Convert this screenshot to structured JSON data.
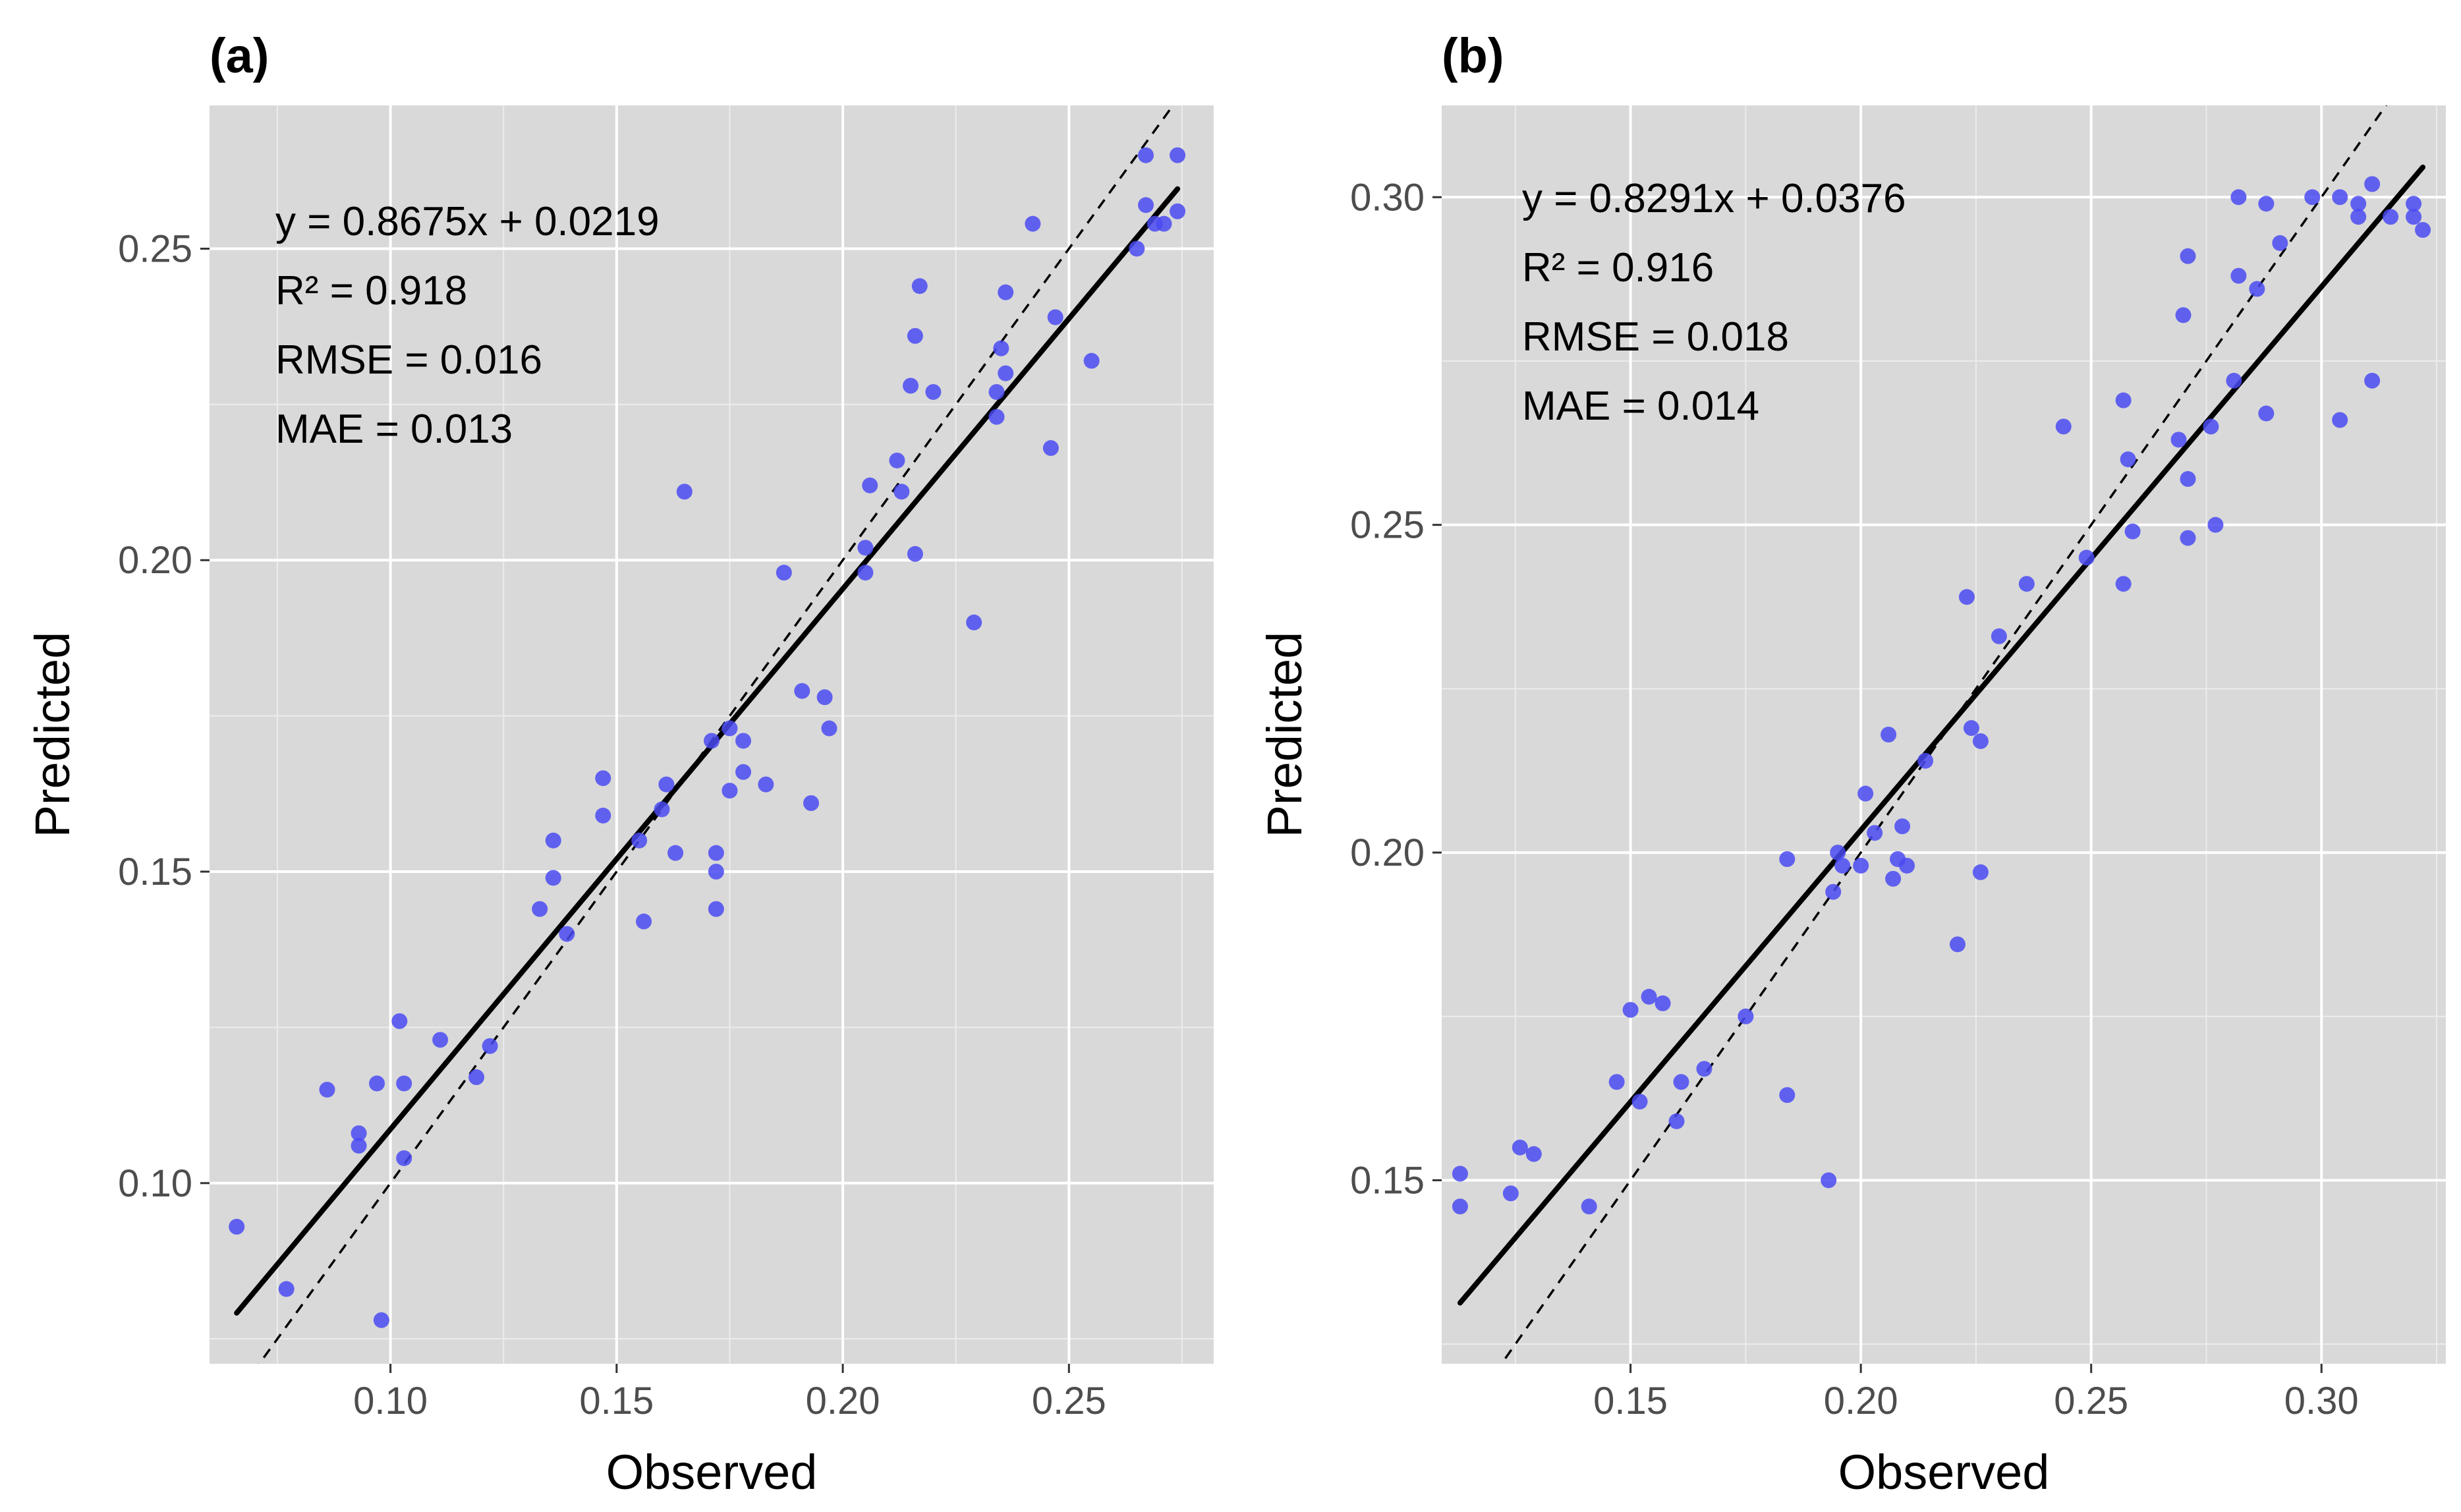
{
  "chart_data": [
    {
      "type": "scatter",
      "panel_label": "(a)",
      "xlabel": "Observed",
      "ylabel": "Predicted",
      "xlim": [
        0.06,
        0.282
      ],
      "ylim": [
        0.071,
        0.273
      ],
      "x_ticks": [
        0.1,
        0.15,
        0.2,
        0.25
      ],
      "y_ticks": [
        0.1,
        0.15,
        0.2,
        0.25
      ],
      "x_tick_labels": [
        "0.10",
        "0.15",
        "0.20",
        "0.25"
      ],
      "y_tick_labels": [
        "0.10",
        "0.15",
        "0.20",
        "0.25"
      ],
      "grid": true,
      "panel_background": "#d9d9d9",
      "point_color": "#4a4af2",
      "fit_line": {
        "slope": 0.8675,
        "intercept": 0.0219,
        "color": "#000000",
        "style": "solid"
      },
      "reference_line": {
        "slope": 1,
        "intercept": 0,
        "color": "#000000",
        "style": "dashed"
      },
      "annotations": [
        "y = 0.8675x + 0.0219",
        "R² = 0.918",
        "RMSE = 0.016",
        "MAE = 0.013"
      ],
      "points": [
        [
          0.066,
          0.093
        ],
        [
          0.077,
          0.083
        ],
        [
          0.086,
          0.115
        ],
        [
          0.093,
          0.106
        ],
        [
          0.093,
          0.108
        ],
        [
          0.097,
          0.116
        ],
        [
          0.098,
          0.078
        ],
        [
          0.102,
          0.126
        ],
        [
          0.103,
          0.104
        ],
        [
          0.103,
          0.116
        ],
        [
          0.111,
          0.123
        ],
        [
          0.119,
          0.117
        ],
        [
          0.122,
          0.122
        ],
        [
          0.133,
          0.144
        ],
        [
          0.136,
          0.149
        ],
        [
          0.136,
          0.155
        ],
        [
          0.139,
          0.14
        ],
        [
          0.147,
          0.165
        ],
        [
          0.147,
          0.159
        ],
        [
          0.155,
          0.155
        ],
        [
          0.156,
          0.142
        ],
        [
          0.16,
          0.16
        ],
        [
          0.161,
          0.164
        ],
        [
          0.163,
          0.153
        ],
        [
          0.165,
          0.211
        ],
        [
          0.171,
          0.171
        ],
        [
          0.172,
          0.153
        ],
        [
          0.172,
          0.15
        ],
        [
          0.172,
          0.144
        ],
        [
          0.175,
          0.163
        ],
        [
          0.175,
          0.173
        ],
        [
          0.178,
          0.166
        ],
        [
          0.178,
          0.171
        ],
        [
          0.183,
          0.164
        ],
        [
          0.187,
          0.198
        ],
        [
          0.191,
          0.179
        ],
        [
          0.193,
          0.161
        ],
        [
          0.196,
          0.178
        ],
        [
          0.197,
          0.173
        ],
        [
          0.205,
          0.198
        ],
        [
          0.205,
          0.202
        ],
        [
          0.206,
          0.212
        ],
        [
          0.212,
          0.216
        ],
        [
          0.213,
          0.211
        ],
        [
          0.215,
          0.228
        ],
        [
          0.216,
          0.236
        ],
        [
          0.216,
          0.201
        ],
        [
          0.217,
          0.244
        ],
        [
          0.22,
          0.227
        ],
        [
          0.229,
          0.19
        ],
        [
          0.234,
          0.223
        ],
        [
          0.234,
          0.227
        ],
        [
          0.235,
          0.234
        ],
        [
          0.236,
          0.243
        ],
        [
          0.236,
          0.23
        ],
        [
          0.242,
          0.254
        ],
        [
          0.246,
          0.218
        ],
        [
          0.247,
          0.239
        ],
        [
          0.255,
          0.232
        ],
        [
          0.265,
          0.25
        ],
        [
          0.267,
          0.265
        ],
        [
          0.267,
          0.257
        ],
        [
          0.269,
          0.254
        ],
        [
          0.271,
          0.254
        ],
        [
          0.274,
          0.265
        ],
        [
          0.274,
          0.256
        ]
      ]
    },
    {
      "type": "scatter",
      "panel_label": "(b)",
      "xlabel": "Observed",
      "ylabel": "Predicted",
      "xlim": [
        0.109,
        0.327
      ],
      "ylim": [
        0.122,
        0.314
      ],
      "x_ticks": [
        0.15,
        0.2,
        0.25,
        0.3
      ],
      "y_ticks": [
        0.15,
        0.2,
        0.25,
        0.3
      ],
      "x_tick_labels": [
        "0.15",
        "0.20",
        "0.25",
        "0.30"
      ],
      "y_tick_labels": [
        "0.15",
        "0.20",
        "0.25",
        "0.30"
      ],
      "grid": true,
      "panel_background": "#d9d9d9",
      "point_color": "#4a4af2",
      "fit_line": {
        "slope": 0.8291,
        "intercept": 0.0376,
        "color": "#000000",
        "style": "solid"
      },
      "reference_line": {
        "slope": 1,
        "intercept": 0,
        "color": "#000000",
        "style": "dashed"
      },
      "annotations": [
        "y = 0.8291x + 0.0376",
        "R² = 0.916",
        "RMSE = 0.018",
        "MAE = 0.014"
      ],
      "points": [
        [
          0.113,
          0.151
        ],
        [
          0.113,
          0.146
        ],
        [
          0.124,
          0.148
        ],
        [
          0.126,
          0.155
        ],
        [
          0.129,
          0.154
        ],
        [
          0.141,
          0.146
        ],
        [
          0.147,
          0.165
        ],
        [
          0.15,
          0.176
        ],
        [
          0.152,
          0.162
        ],
        [
          0.154,
          0.178
        ],
        [
          0.157,
          0.177
        ],
        [
          0.16,
          0.159
        ],
        [
          0.161,
          0.165
        ],
        [
          0.166,
          0.167
        ],
        [
          0.175,
          0.175
        ],
        [
          0.184,
          0.199
        ],
        [
          0.184,
          0.163
        ],
        [
          0.193,
          0.15
        ],
        [
          0.194,
          0.194
        ],
        [
          0.195,
          0.2
        ],
        [
          0.196,
          0.198
        ],
        [
          0.2,
          0.198
        ],
        [
          0.201,
          0.209
        ],
        [
          0.203,
          0.203
        ],
        [
          0.206,
          0.218
        ],
        [
          0.207,
          0.196
        ],
        [
          0.208,
          0.199
        ],
        [
          0.209,
          0.204
        ],
        [
          0.21,
          0.198
        ],
        [
          0.214,
          0.214
        ],
        [
          0.221,
          0.186
        ],
        [
          0.223,
          0.239
        ],
        [
          0.224,
          0.219
        ],
        [
          0.226,
          0.217
        ],
        [
          0.226,
          0.197
        ],
        [
          0.23,
          0.233
        ],
        [
          0.236,
          0.241
        ],
        [
          0.244,
          0.265
        ],
        [
          0.249,
          0.245
        ],
        [
          0.257,
          0.269
        ],
        [
          0.257,
          0.241
        ],
        [
          0.258,
          0.26
        ],
        [
          0.259,
          0.249
        ],
        [
          0.269,
          0.263
        ],
        [
          0.27,
          0.282
        ],
        [
          0.271,
          0.291
        ],
        [
          0.271,
          0.257
        ],
        [
          0.271,
          0.248
        ],
        [
          0.276,
          0.265
        ],
        [
          0.277,
          0.25
        ],
        [
          0.281,
          0.272
        ],
        [
          0.282,
          0.288
        ],
        [
          0.282,
          0.3
        ],
        [
          0.286,
          0.286
        ],
        [
          0.288,
          0.267
        ],
        [
          0.288,
          0.299
        ],
        [
          0.291,
          0.293
        ],
        [
          0.298,
          0.3
        ],
        [
          0.304,
          0.3
        ],
        [
          0.304,
          0.266
        ],
        [
          0.308,
          0.297
        ],
        [
          0.308,
          0.299
        ],
        [
          0.311,
          0.272
        ],
        [
          0.311,
          0.302
        ],
        [
          0.315,
          0.297
        ],
        [
          0.32,
          0.297
        ],
        [
          0.322,
          0.295
        ],
        [
          0.32,
          0.299
        ]
      ]
    }
  ]
}
